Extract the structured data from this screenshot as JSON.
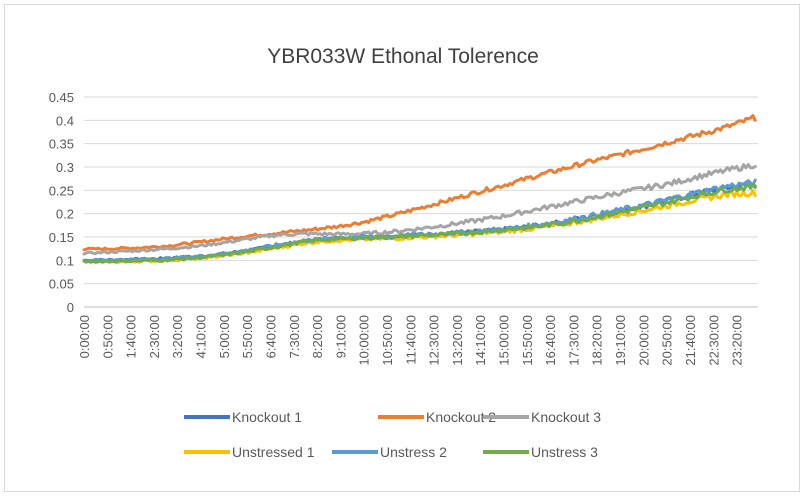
{
  "chart_data": {
    "type": "line",
    "title": "YBR033W Ethonal Tolerence",
    "xlabel": "",
    "ylabel": "",
    "ylim": [
      0,
      0.45
    ],
    "yticks": [
      "0",
      "0.05",
      "0.1",
      "0.15",
      "0.2",
      "0.25",
      "0.3",
      "0.35",
      "0.4",
      "0.45"
    ],
    "xticks": [
      "0:00:00",
      "0:50:00",
      "1:40:00",
      "2:30:00",
      "3:20:00",
      "4:10:00",
      "5:00:00",
      "5:50:00",
      "6:40:00",
      "7:30:00",
      "8:20:00",
      "9:10:00",
      "10:00:00",
      "10:50:00",
      "11:40:00",
      "12:30:00",
      "13:20:00",
      "14:10:00",
      "15:00:00",
      "15:50:00",
      "16:40:00",
      "17:30:00",
      "18:20:00",
      "19:10:00",
      "20:00:00",
      "20:50:00",
      "21:40:00",
      "22:30:00",
      "23:20:00"
    ],
    "x_hours": [
      0,
      1,
      2,
      3,
      4,
      5,
      6,
      7,
      8,
      9,
      10,
      11,
      12,
      13,
      14,
      15,
      16,
      17,
      18,
      19,
      20,
      21,
      22,
      23,
      24
    ],
    "grid": true,
    "legend_position": "bottom",
    "series": [
      {
        "name": "Knockout 1",
        "color": "#4472C4",
        "values": [
          0.1,
          0.101,
          0.102,
          0.104,
          0.108,
          0.114,
          0.122,
          0.132,
          0.142,
          0.147,
          0.149,
          0.151,
          0.154,
          0.157,
          0.161,
          0.166,
          0.172,
          0.181,
          0.192,
          0.204,
          0.216,
          0.23,
          0.244,
          0.256,
          0.264
        ]
      },
      {
        "name": "Knockout 2",
        "color": "#ED7D31",
        "values": [
          0.124,
          0.125,
          0.127,
          0.131,
          0.138,
          0.146,
          0.153,
          0.159,
          0.165,
          0.172,
          0.182,
          0.196,
          0.212,
          0.228,
          0.245,
          0.261,
          0.278,
          0.294,
          0.31,
          0.324,
          0.339,
          0.355,
          0.37,
          0.386,
          0.406
        ]
      },
      {
        "name": "Knockout 3",
        "color": "#A5A5A5",
        "values": [
          0.115,
          0.118,
          0.121,
          0.125,
          0.13,
          0.138,
          0.147,
          0.155,
          0.157,
          0.156,
          0.157,
          0.161,
          0.168,
          0.176,
          0.185,
          0.195,
          0.207,
          0.219,
          0.231,
          0.243,
          0.254,
          0.265,
          0.28,
          0.293,
          0.305
        ]
      },
      {
        "name": "Unstressed 1",
        "color": "#FFC000",
        "values": [
          0.097,
          0.097,
          0.098,
          0.1,
          0.104,
          0.11,
          0.118,
          0.128,
          0.138,
          0.143,
          0.145,
          0.147,
          0.15,
          0.153,
          0.157,
          0.162,
          0.168,
          0.176,
          0.186,
          0.196,
          0.207,
          0.219,
          0.231,
          0.241,
          0.245
        ]
      },
      {
        "name": "Unstress 2",
        "color": "#5B9BD5",
        "values": [
          0.1,
          0.101,
          0.102,
          0.104,
          0.108,
          0.114,
          0.123,
          0.134,
          0.143,
          0.148,
          0.15,
          0.152,
          0.155,
          0.158,
          0.162,
          0.167,
          0.174,
          0.183,
          0.194,
          0.206,
          0.218,
          0.232,
          0.246,
          0.259,
          0.267
        ]
      },
      {
        "name": "Unstress 3",
        "color": "#70AD47",
        "values": [
          0.097,
          0.098,
          0.099,
          0.101,
          0.105,
          0.111,
          0.12,
          0.131,
          0.141,
          0.146,
          0.148,
          0.15,
          0.153,
          0.156,
          0.16,
          0.165,
          0.171,
          0.179,
          0.189,
          0.201,
          0.213,
          0.226,
          0.24,
          0.252,
          0.258
        ]
      }
    ]
  }
}
